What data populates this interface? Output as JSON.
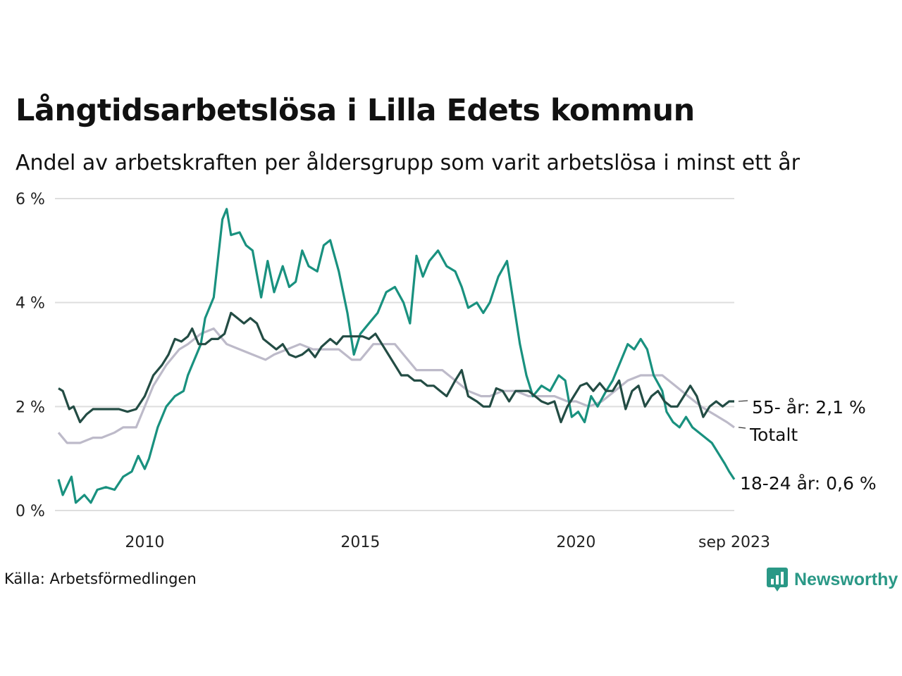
{
  "chart_data": {
    "type": "line",
    "title": "Långtidsarbetslösa i Lilla Edets kommun",
    "subtitle": "Andel av arbetskraften per åldersgrupp som varit arbetslösa i minst ett år",
    "source": "Källa: Arbetsförmedlingen",
    "brand": "Newsworthy",
    "xlim": [
      2008.0,
      2023.67
    ],
    "ylim": [
      0,
      6
    ],
    "yticks": [
      {
        "value": 0,
        "label": "0 %"
      },
      {
        "value": 2,
        "label": "2 %"
      },
      {
        "value": 4,
        "label": "4 %"
      },
      {
        "value": 6,
        "label": "6 %"
      }
    ],
    "xticks": [
      {
        "value": 2010,
        "label": "2010"
      },
      {
        "value": 2015,
        "label": "2015"
      },
      {
        "value": 2020,
        "label": "2020"
      },
      {
        "value": 2023.67,
        "label": "sep 2023"
      }
    ],
    "grid": true,
    "series": [
      {
        "name": "Totalt",
        "label": "Totalt",
        "color": "#bdbac9",
        "points": [
          [
            2008.0,
            1.5
          ],
          [
            2008.2,
            1.3
          ],
          [
            2008.5,
            1.3
          ],
          [
            2008.8,
            1.4
          ],
          [
            2009.0,
            1.4
          ],
          [
            2009.3,
            1.5
          ],
          [
            2009.5,
            1.6
          ],
          [
            2009.8,
            1.6
          ],
          [
            2010.0,
            2.0
          ],
          [
            2010.2,
            2.4
          ],
          [
            2010.5,
            2.8
          ],
          [
            2010.8,
            3.1
          ],
          [
            2011.0,
            3.2
          ],
          [
            2011.3,
            3.4
          ],
          [
            2011.6,
            3.5
          ],
          [
            2011.9,
            3.2
          ],
          [
            2012.2,
            3.1
          ],
          [
            2012.5,
            3.0
          ],
          [
            2012.8,
            2.9
          ],
          [
            2013.0,
            3.0
          ],
          [
            2013.3,
            3.1
          ],
          [
            2013.6,
            3.2
          ],
          [
            2013.9,
            3.1
          ],
          [
            2014.2,
            3.1
          ],
          [
            2014.5,
            3.1
          ],
          [
            2014.8,
            2.9
          ],
          [
            2015.0,
            2.9
          ],
          [
            2015.3,
            3.2
          ],
          [
            2015.6,
            3.2
          ],
          [
            2015.8,
            3.2
          ],
          [
            2016.0,
            3.0
          ],
          [
            2016.3,
            2.7
          ],
          [
            2016.6,
            2.7
          ],
          [
            2016.9,
            2.7
          ],
          [
            2017.2,
            2.5
          ],
          [
            2017.5,
            2.3
          ],
          [
            2017.8,
            2.2
          ],
          [
            2018.0,
            2.2
          ],
          [
            2018.3,
            2.3
          ],
          [
            2018.6,
            2.3
          ],
          [
            2018.9,
            2.2
          ],
          [
            2019.2,
            2.2
          ],
          [
            2019.5,
            2.2
          ],
          [
            2019.8,
            2.1
          ],
          [
            2020.0,
            2.1
          ],
          [
            2020.3,
            2.0
          ],
          [
            2020.6,
            2.1
          ],
          [
            2020.9,
            2.3
          ],
          [
            2021.2,
            2.5
          ],
          [
            2021.5,
            2.6
          ],
          [
            2021.8,
            2.6
          ],
          [
            2022.0,
            2.6
          ],
          [
            2022.3,
            2.4
          ],
          [
            2022.6,
            2.2
          ],
          [
            2022.9,
            2.0
          ],
          [
            2023.1,
            1.9
          ],
          [
            2023.3,
            1.8
          ],
          [
            2023.5,
            1.7
          ],
          [
            2023.67,
            1.6
          ]
        ]
      },
      {
        "name": "18-24 år",
        "label": "18-24 år: 0,6 %",
        "color": "#19917f",
        "points": [
          [
            2008.0,
            0.6
          ],
          [
            2008.1,
            0.3
          ],
          [
            2008.3,
            0.65
          ],
          [
            2008.4,
            0.15
          ],
          [
            2008.6,
            0.3
          ],
          [
            2008.75,
            0.15
          ],
          [
            2008.9,
            0.4
          ],
          [
            2009.1,
            0.45
          ],
          [
            2009.3,
            0.4
          ],
          [
            2009.5,
            0.65
          ],
          [
            2009.7,
            0.75
          ],
          [
            2009.85,
            1.05
          ],
          [
            2010.0,
            0.8
          ],
          [
            2010.1,
            1.0
          ],
          [
            2010.3,
            1.6
          ],
          [
            2010.5,
            2.0
          ],
          [
            2010.7,
            2.2
          ],
          [
            2010.9,
            2.3
          ],
          [
            2011.0,
            2.6
          ],
          [
            2011.1,
            2.8
          ],
          [
            2011.3,
            3.2
          ],
          [
            2011.4,
            3.7
          ],
          [
            2011.6,
            4.1
          ],
          [
            2011.8,
            5.6
          ],
          [
            2011.9,
            5.8
          ],
          [
            2012.0,
            5.3
          ],
          [
            2012.2,
            5.35
          ],
          [
            2012.35,
            5.1
          ],
          [
            2012.5,
            5.0
          ],
          [
            2012.7,
            4.1
          ],
          [
            2012.85,
            4.8
          ],
          [
            2013.0,
            4.2
          ],
          [
            2013.2,
            4.7
          ],
          [
            2013.35,
            4.3
          ],
          [
            2013.5,
            4.4
          ],
          [
            2013.65,
            5.0
          ],
          [
            2013.8,
            4.7
          ],
          [
            2014.0,
            4.6
          ],
          [
            2014.15,
            5.1
          ],
          [
            2014.3,
            5.2
          ],
          [
            2014.5,
            4.6
          ],
          [
            2014.7,
            3.8
          ],
          [
            2014.85,
            3.0
          ],
          [
            2015.0,
            3.4
          ],
          [
            2015.2,
            3.6
          ],
          [
            2015.4,
            3.8
          ],
          [
            2015.6,
            4.2
          ],
          [
            2015.8,
            4.3
          ],
          [
            2016.0,
            4.0
          ],
          [
            2016.15,
            3.6
          ],
          [
            2016.3,
            4.9
          ],
          [
            2016.45,
            4.5
          ],
          [
            2016.6,
            4.8
          ],
          [
            2016.8,
            5.0
          ],
          [
            2017.0,
            4.7
          ],
          [
            2017.2,
            4.6
          ],
          [
            2017.35,
            4.3
          ],
          [
            2017.5,
            3.9
          ],
          [
            2017.7,
            4.0
          ],
          [
            2017.85,
            3.8
          ],
          [
            2018.0,
            4.0
          ],
          [
            2018.2,
            4.5
          ],
          [
            2018.4,
            4.8
          ],
          [
            2018.55,
            4.0
          ],
          [
            2018.7,
            3.2
          ],
          [
            2018.85,
            2.6
          ],
          [
            2019.0,
            2.2
          ],
          [
            2019.2,
            2.4
          ],
          [
            2019.4,
            2.3
          ],
          [
            2019.6,
            2.6
          ],
          [
            2019.75,
            2.5
          ],
          [
            2019.9,
            1.8
          ],
          [
            2020.05,
            1.9
          ],
          [
            2020.2,
            1.7
          ],
          [
            2020.35,
            2.2
          ],
          [
            2020.5,
            2.0
          ],
          [
            2020.7,
            2.3
          ],
          [
            2020.85,
            2.5
          ],
          [
            2021.0,
            2.8
          ],
          [
            2021.2,
            3.2
          ],
          [
            2021.35,
            3.1
          ],
          [
            2021.5,
            3.3
          ],
          [
            2021.65,
            3.1
          ],
          [
            2021.8,
            2.6
          ],
          [
            2022.0,
            2.3
          ],
          [
            2022.1,
            1.9
          ],
          [
            2022.25,
            1.7
          ],
          [
            2022.4,
            1.6
          ],
          [
            2022.55,
            1.8
          ],
          [
            2022.7,
            1.6
          ],
          [
            2022.85,
            1.5
          ],
          [
            2023.0,
            1.4
          ],
          [
            2023.15,
            1.3
          ],
          [
            2023.3,
            1.1
          ],
          [
            2023.45,
            0.9
          ],
          [
            2023.55,
            0.75
          ],
          [
            2023.67,
            0.6
          ]
        ]
      },
      {
        "name": "55- år",
        "label": "55- år: 2,1 %",
        "color": "#234c44",
        "points": [
          [
            2008.0,
            2.35
          ],
          [
            2008.1,
            2.3
          ],
          [
            2008.25,
            1.95
          ],
          [
            2008.35,
            2.0
          ],
          [
            2008.5,
            1.7
          ],
          [
            2008.65,
            1.85
          ],
          [
            2008.8,
            1.95
          ],
          [
            2009.0,
            1.95
          ],
          [
            2009.2,
            1.95
          ],
          [
            2009.4,
            1.95
          ],
          [
            2009.6,
            1.9
          ],
          [
            2009.8,
            1.95
          ],
          [
            2010.0,
            2.2
          ],
          [
            2010.2,
            2.6
          ],
          [
            2010.4,
            2.8
          ],
          [
            2010.55,
            3.0
          ],
          [
            2010.7,
            3.3
          ],
          [
            2010.85,
            3.25
          ],
          [
            2011.0,
            3.35
          ],
          [
            2011.1,
            3.5
          ],
          [
            2011.25,
            3.2
          ],
          [
            2011.4,
            3.2
          ],
          [
            2011.55,
            3.3
          ],
          [
            2011.7,
            3.3
          ],
          [
            2011.85,
            3.4
          ],
          [
            2012.0,
            3.8
          ],
          [
            2012.15,
            3.7
          ],
          [
            2012.3,
            3.6
          ],
          [
            2012.45,
            3.7
          ],
          [
            2012.6,
            3.6
          ],
          [
            2012.75,
            3.3
          ],
          [
            2012.9,
            3.2
          ],
          [
            2013.05,
            3.1
          ],
          [
            2013.2,
            3.2
          ],
          [
            2013.35,
            3.0
          ],
          [
            2013.5,
            2.95
          ],
          [
            2013.65,
            3.0
          ],
          [
            2013.8,
            3.1
          ],
          [
            2013.95,
            2.95
          ],
          [
            2014.1,
            3.15
          ],
          [
            2014.3,
            3.3
          ],
          [
            2014.45,
            3.2
          ],
          [
            2014.6,
            3.35
          ],
          [
            2014.75,
            3.35
          ],
          [
            2014.9,
            3.35
          ],
          [
            2015.05,
            3.35
          ],
          [
            2015.2,
            3.3
          ],
          [
            2015.35,
            3.4
          ],
          [
            2015.5,
            3.2
          ],
          [
            2015.65,
            3.0
          ],
          [
            2015.8,
            2.8
          ],
          [
            2015.95,
            2.6
          ],
          [
            2016.1,
            2.6
          ],
          [
            2016.25,
            2.5
          ],
          [
            2016.4,
            2.5
          ],
          [
            2016.55,
            2.4
          ],
          [
            2016.7,
            2.4
          ],
          [
            2016.85,
            2.3
          ],
          [
            2017.0,
            2.2
          ],
          [
            2017.2,
            2.5
          ],
          [
            2017.35,
            2.7
          ],
          [
            2017.5,
            2.2
          ],
          [
            2017.7,
            2.1
          ],
          [
            2017.85,
            2.0
          ],
          [
            2018.0,
            2.0
          ],
          [
            2018.15,
            2.35
          ],
          [
            2018.3,
            2.3
          ],
          [
            2018.45,
            2.1
          ],
          [
            2018.6,
            2.3
          ],
          [
            2018.75,
            2.3
          ],
          [
            2018.9,
            2.3
          ],
          [
            2019.05,
            2.2
          ],
          [
            2019.2,
            2.1
          ],
          [
            2019.35,
            2.05
          ],
          [
            2019.5,
            2.1
          ],
          [
            2019.65,
            1.7
          ],
          [
            2019.8,
            2.0
          ],
          [
            2019.95,
            2.2
          ],
          [
            2020.1,
            2.4
          ],
          [
            2020.25,
            2.45
          ],
          [
            2020.4,
            2.3
          ],
          [
            2020.55,
            2.45
          ],
          [
            2020.7,
            2.3
          ],
          [
            2020.85,
            2.3
          ],
          [
            2021.0,
            2.5
          ],
          [
            2021.15,
            1.95
          ],
          [
            2021.3,
            2.3
          ],
          [
            2021.45,
            2.4
          ],
          [
            2021.6,
            2.0
          ],
          [
            2021.75,
            2.2
          ],
          [
            2021.9,
            2.3
          ],
          [
            2022.05,
            2.1
          ],
          [
            2022.2,
            2.0
          ],
          [
            2022.35,
            2.0
          ],
          [
            2022.5,
            2.2
          ],
          [
            2022.65,
            2.4
          ],
          [
            2022.8,
            2.2
          ],
          [
            2022.95,
            1.8
          ],
          [
            2023.1,
            2.0
          ],
          [
            2023.25,
            2.1
          ],
          [
            2023.4,
            2.0
          ],
          [
            2023.55,
            2.1
          ],
          [
            2023.67,
            2.1
          ]
        ]
      }
    ]
  }
}
